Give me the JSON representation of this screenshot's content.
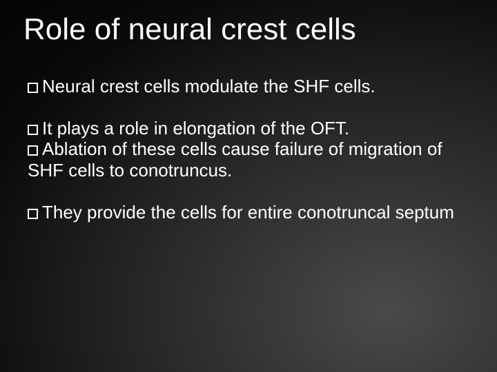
{
  "slide": {
    "title": "Role of neural crest cells",
    "title_fontsize": 44,
    "body_fontsize": 26,
    "text_color": "#ffffff",
    "bullet_border_color": "#ffffff",
    "background_gradient": {
      "type": "radial",
      "center": "bottom-right",
      "stops": [
        "#4a4a4a",
        "#383838",
        "#222222",
        "#0a0a0a",
        "#000000"
      ]
    },
    "paragraphs": [
      {
        "lines": [
          {
            "bullet": true,
            "seg_before": "Neural",
            "seg_after": " crest cells modulate the SHF cells."
          }
        ]
      },
      {
        "lines": [
          {
            "bullet": true,
            "seg_before": "It",
            "seg_after": " plays a role in elongation of the OFT."
          },
          {
            "bullet": true,
            "seg_before": "Ablation",
            "seg_after": " of these cells cause failure of migration of SHF cells to conotruncus."
          }
        ]
      },
      {
        "lines": [
          {
            "bullet": true,
            "seg_before": "They",
            "seg_after": " provide the cells for entire conotruncal septum"
          }
        ]
      }
    ]
  }
}
